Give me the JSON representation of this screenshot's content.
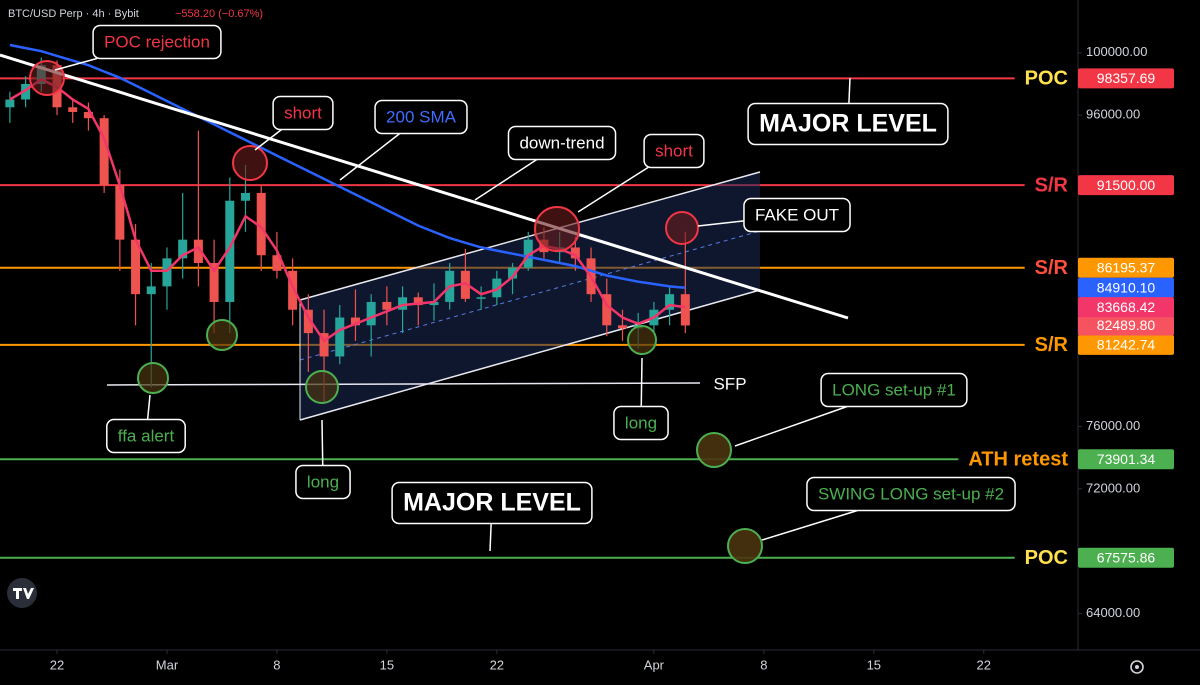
{
  "chart_data": {
    "type": "candlestick",
    "title": "BTC/USD Perp · 4h · Bybit",
    "change": "−558.20 (−0.67%)",
    "x": [
      -3,
      -2,
      -1,
      0,
      1,
      2,
      3,
      4,
      5,
      6,
      7,
      8,
      9,
      10,
      11,
      12,
      13,
      14,
      15,
      16,
      17,
      18,
      19,
      20,
      21,
      22,
      23,
      24,
      25,
      26,
      27,
      28,
      29,
      30,
      31,
      32,
      33,
      34,
      35,
      36,
      37,
      38,
      39,
      40
    ],
    "open": [
      96500,
      97000,
      98000,
      99200,
      96500,
      96200,
      95800,
      91500,
      88000,
      84500,
      85000,
      86800,
      88000,
      86500,
      84000,
      90500,
      91000,
      87000,
      86000,
      83500,
      82000,
      80500,
      83000,
      82500,
      84000,
      83500,
      84300,
      83800,
      84000,
      86000,
      84200,
      84300,
      85500,
      86200,
      88000,
      87200,
      87500,
      86800,
      84500,
      82500,
      82300,
      82500,
      83500,
      84500
    ],
    "high": [
      97500,
      98500,
      99700,
      99500,
      97000,
      96800,
      96000,
      92500,
      89000,
      86500,
      87500,
      91000,
      95000,
      88000,
      92000,
      92800,
      91500,
      88500,
      86800,
      84500,
      83500,
      83800,
      84800,
      84500,
      85000,
      85000,
      84600,
      85200,
      86500,
      87400,
      85000,
      86000,
      86500,
      88500,
      88800,
      88500,
      88200,
      87500,
      85500,
      83500,
      83300,
      84000,
      85000,
      88500
    ],
    "low": [
      95500,
      96500,
      97500,
      96000,
      95500,
      95000,
      91000,
      86000,
      82500,
      78500,
      83500,
      85500,
      85000,
      82000,
      82000,
      88500,
      86000,
      85500,
      82500,
      79500,
      77500,
      80000,
      81500,
      80500,
      82500,
      82000,
      82500,
      82800,
      83500,
      84000,
      83500,
      83800,
      84500,
      86000,
      86800,
      86500,
      86000,
      84000,
      81800,
      81500,
      81000,
      82000,
      82500,
      82000
    ],
    "close": [
      97000,
      98000,
      99200,
      96500,
      96200,
      95800,
      91500,
      88000,
      84500,
      85000,
      86800,
      88000,
      86500,
      84000,
      90500,
      91000,
      87000,
      86000,
      83500,
      82000,
      80500,
      83000,
      82500,
      84000,
      83500,
      84300,
      83800,
      84000,
      86000,
      84200,
      84300,
      85500,
      86200,
      88000,
      87200,
      87500,
      86800,
      84500,
      82500,
      82300,
      82500,
      83500,
      84500,
      82489.8
    ],
    "close_label": "82489.80",
    "up_color": "#26a69a",
    "down_color": "#ef5350",
    "close_badge_color": "#f7525f",
    "series": [
      {
        "color": "#2962ff",
        "last_label": "84910.10",
        "values": [
          100500,
          100300,
          100100,
          99800,
          99500,
          99200,
          98800,
          98400,
          97900,
          97400,
          96900,
          96400,
          95900,
          95400,
          94900,
          94400,
          93900,
          93400,
          92900,
          92400,
          91900,
          91400,
          90900,
          90400,
          89900,
          89400,
          88900,
          88500,
          88100,
          87800,
          87500,
          87300,
          87100,
          86900,
          86700,
          86500,
          86300,
          86000,
          85700,
          85500,
          85300,
          85150,
          85000,
          84910.1
        ]
      },
      {
        "color": "#f23669",
        "last_label": "83668.42",
        "values": [
          97000,
          97600,
          98300,
          97800,
          97000,
          96400,
          94500,
          91500,
          88000,
          86000,
          86000,
          87000,
          87500,
          86000,
          87500,
          89500,
          88800,
          87300,
          85000,
          83000,
          81500,
          82200,
          82600,
          83000,
          83400,
          83800,
          83900,
          84000,
          85000,
          85200,
          84500,
          84800,
          85600,
          87000,
          87600,
          87400,
          87000,
          85600,
          83800,
          83000,
          82600,
          83000,
          83800,
          83668.42
        ]
      }
    ],
    "levels": [
      {
        "label": "POC",
        "value": 98357.69,
        "value_label": "98357.69",
        "color": "#f23645",
        "label_color": "#ffe14d"
      },
      {
        "label": "S/R",
        "value": 91500,
        "value_label": "91500.00",
        "color": "#f23645",
        "label_color": "#f23645"
      },
      {
        "label": "S/R",
        "value": 86195.37,
        "value_label": "86195.37",
        "color": "#ff9800",
        "label_color": "#ff4f3a"
      },
      {
        "label": "S/R",
        "value": 81242.74,
        "value_label": "81242.74",
        "color": "#ff9800",
        "label_color": "#ff9800"
      },
      {
        "label": "ATH retest",
        "value": 73901.34,
        "value_label": "73901.34",
        "color": "#4caf50",
        "label_color": "#ff9800"
      },
      {
        "label": "POC",
        "value": 67575.86,
        "value_label": "67575.86",
        "color": "#4caf50",
        "label_color": "#ffe14d"
      }
    ],
    "annotations": [
      {
        "text": "POC rejection",
        "color": "#f23645"
      },
      {
        "text": "short",
        "color": "#f23645"
      },
      {
        "text": "200 SMA",
        "color": "#3f6dff"
      },
      {
        "text": "down-trend",
        "color": "#ffffff"
      },
      {
        "text": "short",
        "color": "#f23645"
      },
      {
        "text": "FAKE OUT",
        "color": "#ffffff"
      },
      {
        "text": "MAJOR LEVEL",
        "color": "#ffffff"
      },
      {
        "text": "ffa alert",
        "color": "#4caf50"
      },
      {
        "text": "long",
        "color": "#4caf50"
      },
      {
        "text": "long",
        "color": "#4caf50"
      },
      {
        "text": "SFP",
        "color": "#ffffff"
      },
      {
        "text": "LONG set-up #1",
        "color": "#4caf50"
      },
      {
        "text": "MAJOR LEVEL",
        "color": "#ffffff"
      },
      {
        "text": "SWING LONG set-up #2",
        "color": "#4caf50"
      }
    ],
    "xlim": [
      -3.63,
      65
    ],
    "xticks": [
      {
        "value": 0,
        "label": "22"
      },
      {
        "value": 7,
        "label": "Mar"
      },
      {
        "value": 14,
        "label": "8"
      },
      {
        "value": 21,
        "label": "15"
      },
      {
        "value": 28,
        "label": "22"
      },
      {
        "value": 38,
        "label": "Apr"
      },
      {
        "value": 45,
        "label": "8"
      },
      {
        "value": 52,
        "label": "15"
      },
      {
        "value": 59,
        "label": "22"
      }
    ],
    "ylim": [
      61650,
      103390
    ],
    "yticks": [
      {
        "value": 100000,
        "label": "100000.00"
      },
      {
        "value": 96000,
        "label": "96000.00"
      },
      {
        "value": 76000,
        "label": "76000.00"
      },
      {
        "value": 72000,
        "label": "72000.00"
      },
      {
        "value": 64000,
        "label": "64000.00"
      }
    ]
  }
}
